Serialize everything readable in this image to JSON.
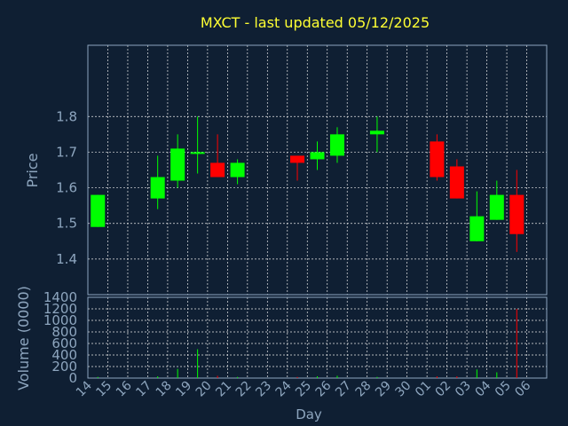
{
  "chart_data": [
    {
      "type": "candlestick",
      "title": "MXCT - last updated 05/12/2025",
      "ylabel": "Price",
      "ylim": [
        1.3,
        2.0
      ],
      "yticks": [
        "1.4",
        "1.5",
        "1.6",
        "1.7",
        "1.8"
      ],
      "grid": true,
      "colors": {
        "up": "#00ff00",
        "down": "#ff0000"
      },
      "candles": [
        {
          "day": "14",
          "open": 1.49,
          "high": 1.58,
          "low": 1.49,
          "close": 1.58
        },
        {
          "day": "17",
          "open": 1.57,
          "high": 1.69,
          "low": 1.54,
          "close": 1.63
        },
        {
          "day": "18",
          "open": 1.62,
          "high": 1.75,
          "low": 1.6,
          "close": 1.71
        },
        {
          "day": "19",
          "open": 1.7,
          "high": 1.8,
          "low": 1.64,
          "close": 1.7
        },
        {
          "day": "20",
          "open": 1.67,
          "high": 1.75,
          "low": 1.63,
          "close": 1.63
        },
        {
          "day": "21",
          "open": 1.63,
          "high": 1.68,
          "low": 1.61,
          "close": 1.67
        },
        {
          "day": "24",
          "open": 1.69,
          "high": 1.69,
          "low": 1.62,
          "close": 1.67
        },
        {
          "day": "25",
          "open": 1.68,
          "high": 1.73,
          "low": 1.65,
          "close": 1.7
        },
        {
          "day": "26",
          "open": 1.69,
          "high": 1.77,
          "low": 1.67,
          "close": 1.75
        },
        {
          "day": "28",
          "open": 1.75,
          "high": 1.8,
          "low": 1.7,
          "close": 1.76
        },
        {
          "day": "01",
          "open": 1.73,
          "high": 1.75,
          "low": 1.62,
          "close": 1.63
        },
        {
          "day": "02",
          "open": 1.66,
          "high": 1.68,
          "low": 1.57,
          "close": 1.57
        },
        {
          "day": "03",
          "open": 1.45,
          "high": 1.59,
          "low": 1.45,
          "close": 1.52
        },
        {
          "day": "04",
          "open": 1.51,
          "high": 1.62,
          "low": 1.51,
          "close": 1.58
        },
        {
          "day": "05",
          "open": 1.58,
          "high": 1.65,
          "low": 1.42,
          "close": 1.47
        }
      ]
    },
    {
      "type": "bar",
      "ylabel": "Volume (0000)",
      "xlabel": "Day",
      "ylim": [
        0,
        1400
      ],
      "yticks": [
        "0",
        "200",
        "400",
        "600",
        "800",
        "1000",
        "1200",
        "1400"
      ],
      "xticks": [
        "14",
        "15",
        "16",
        "17",
        "18",
        "19",
        "20",
        "21",
        "22",
        "23",
        "24",
        "25",
        "26",
        "27",
        "28",
        "29",
        "30",
        "01",
        "02",
        "03",
        "04",
        "05",
        "06"
      ],
      "grid": true,
      "values": [
        {
          "day": "14",
          "volume": 20,
          "direction": "up"
        },
        {
          "day": "17",
          "volume": 30,
          "direction": "up"
        },
        {
          "day": "18",
          "volume": 160,
          "direction": "up"
        },
        {
          "day": "19",
          "volume": 500,
          "direction": "up"
        },
        {
          "day": "20",
          "volume": 40,
          "direction": "down"
        },
        {
          "day": "21",
          "volume": 20,
          "direction": "up"
        },
        {
          "day": "24",
          "volume": 20,
          "direction": "down"
        },
        {
          "day": "25",
          "volume": 30,
          "direction": "up"
        },
        {
          "day": "26",
          "volume": 40,
          "direction": "up"
        },
        {
          "day": "28",
          "volume": 20,
          "direction": "up"
        },
        {
          "day": "01",
          "volume": 30,
          "direction": "down"
        },
        {
          "day": "02",
          "volume": 30,
          "direction": "down"
        },
        {
          "day": "03",
          "volume": 150,
          "direction": "up"
        },
        {
          "day": "04",
          "volume": 100,
          "direction": "up"
        },
        {
          "day": "05",
          "volume": 1200,
          "direction": "down"
        }
      ]
    }
  ]
}
